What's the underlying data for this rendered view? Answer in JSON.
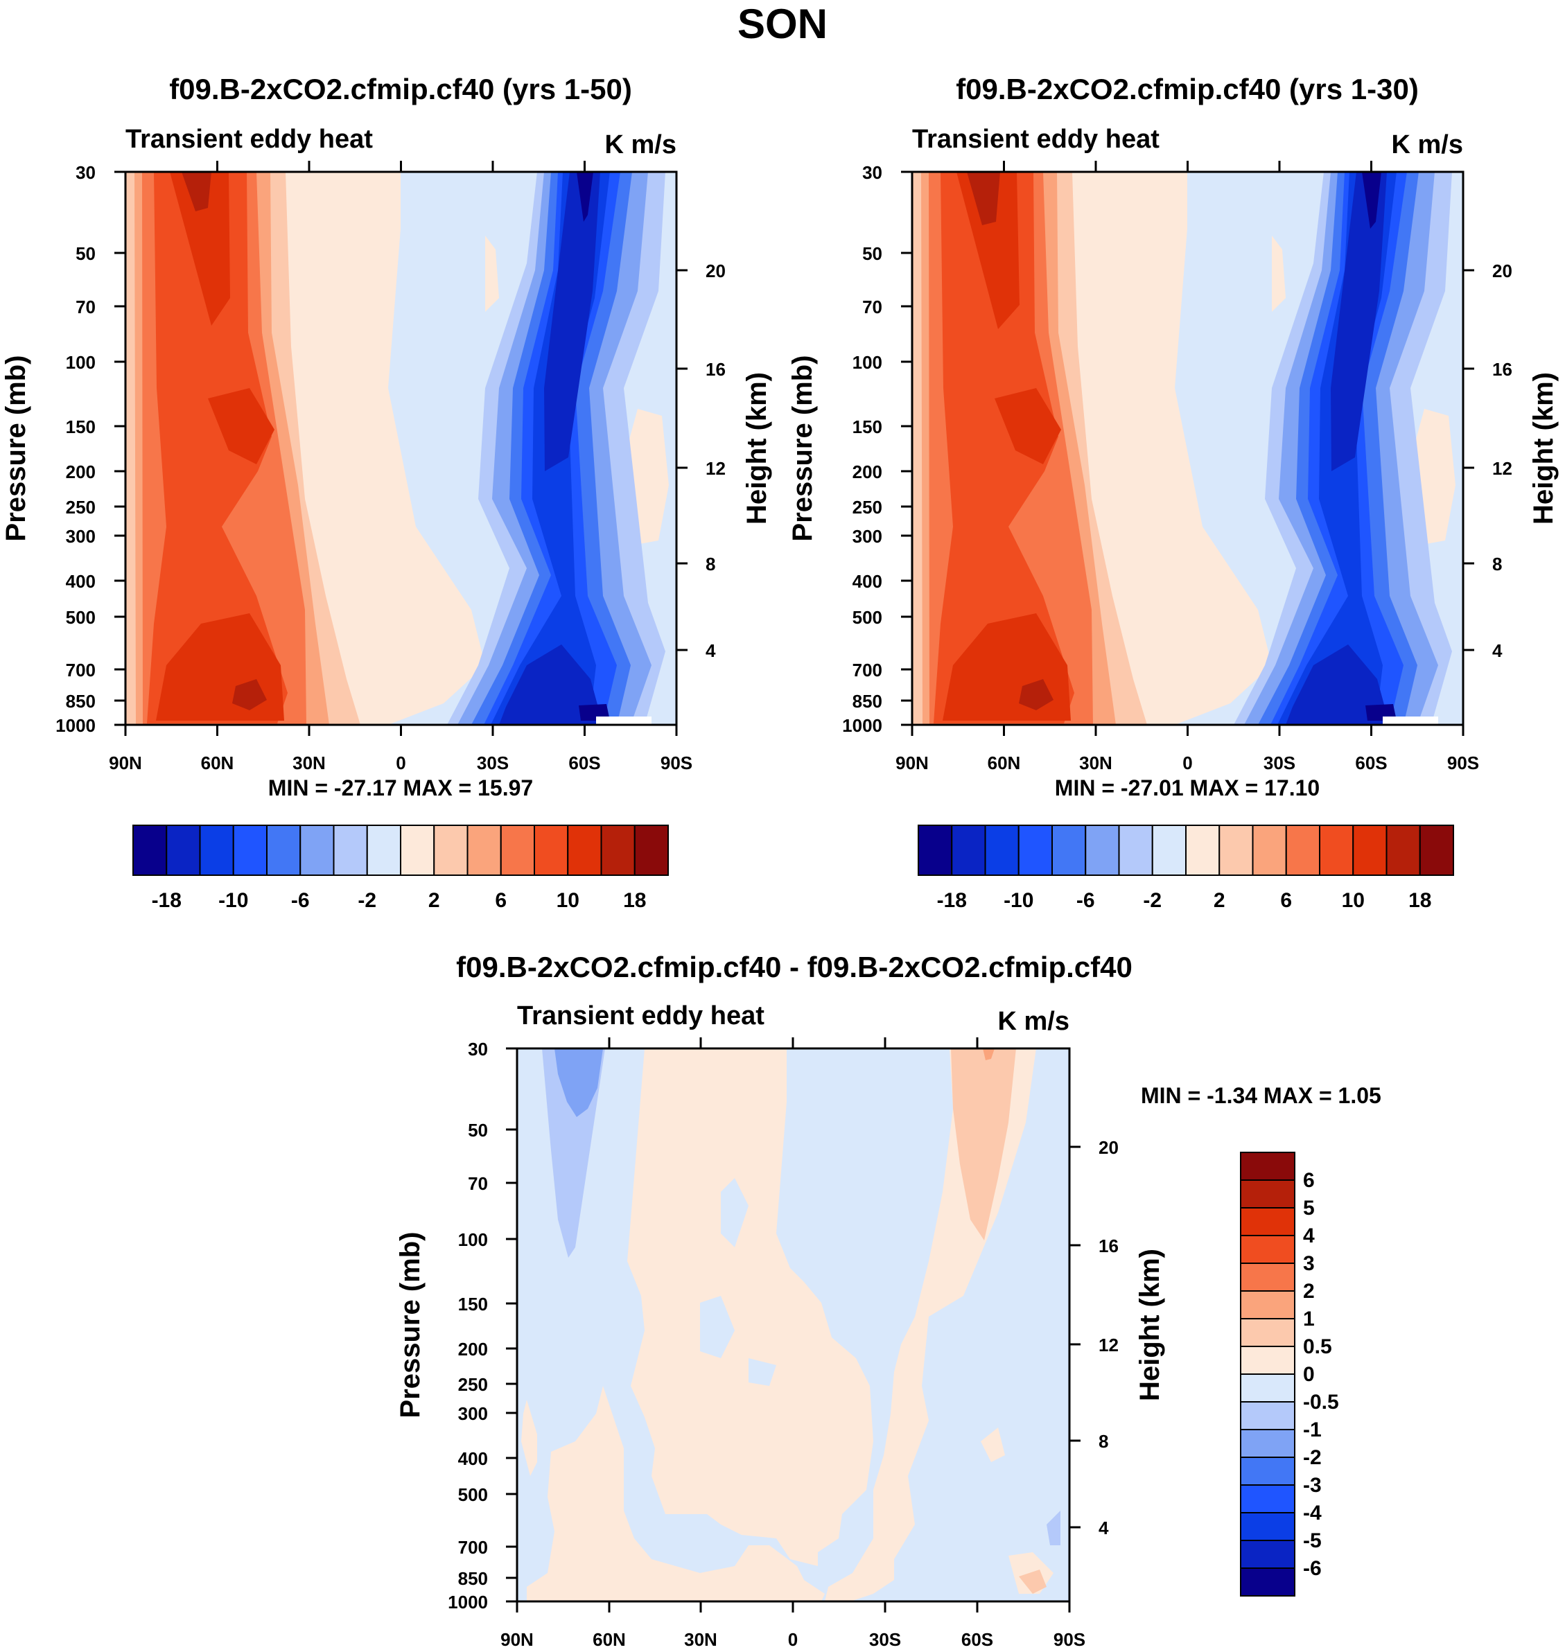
{
  "figure": {
    "title": "SON"
  },
  "chart_data": [
    {
      "type": "heatmap",
      "title": "f09.B-2xCO2.cfmip.cf40 (yrs 1-50)",
      "variable": "Transient eddy heat",
      "units": "K m/s",
      "xlabel": "",
      "ylabel": "Pressure (mb)",
      "ylabel_right": "Height (km)",
      "x_ticks": [
        "90N",
        "60N",
        "30N",
        "0",
        "30S",
        "60S",
        "90S"
      ],
      "y_ticks": [
        "30",
        "50",
        "70",
        "100",
        "150",
        "200",
        "250",
        "300",
        "400",
        "500",
        "700",
        "850",
        "1000"
      ],
      "height_ticks": [
        "20",
        "16",
        "12",
        "8",
        "4"
      ],
      "minmax": "MIN = -27.17  MAX =  15.97",
      "min": -27.17,
      "max": 15.97,
      "colorbar_labels": [
        "-18",
        "-10",
        "-6",
        "-2",
        "2",
        "6",
        "10",
        "18"
      ],
      "colorbar_levels": [
        -18,
        -14,
        -10,
        -8,
        -6,
        -4,
        -2,
        0,
        2,
        4,
        6,
        8,
        10,
        14,
        18
      ],
      "colors": [
        "#08008c",
        "#0a24c4",
        "#0b3ee6",
        "#1f55ff",
        "#4277f5",
        "#7fa3f5",
        "#b4c9fa",
        "#d9e8fb",
        "#fde9da",
        "#fcc9ad",
        "#faa47c",
        "#f7764a",
        "#f04d20",
        "#e03208",
        "#b5200a",
        "#8a0a0a"
      ]
    },
    {
      "type": "heatmap",
      "title": "f09.B-2xCO2.cfmip.cf40 (yrs 1-30)",
      "variable": "Transient eddy heat",
      "units": "K m/s",
      "xlabel": "",
      "ylabel": "Pressure (mb)",
      "ylabel_right": "Height (km)",
      "x_ticks": [
        "90N",
        "60N",
        "30N",
        "0",
        "30S",
        "60S",
        "90S"
      ],
      "y_ticks": [
        "30",
        "50",
        "70",
        "100",
        "150",
        "200",
        "250",
        "300",
        "400",
        "500",
        "700",
        "850",
        "1000"
      ],
      "height_ticks": [
        "20",
        "16",
        "12",
        "8",
        "4"
      ],
      "minmax": "MIN = -27.01  MAX =  17.10",
      "min": -27.01,
      "max": 17.1,
      "colorbar_labels": [
        "-18",
        "-10",
        "-6",
        "-2",
        "2",
        "6",
        "10",
        "18"
      ],
      "colorbar_levels": [
        -18,
        -14,
        -10,
        -8,
        -6,
        -4,
        -2,
        0,
        2,
        4,
        6,
        8,
        10,
        14,
        18
      ],
      "colors": [
        "#08008c",
        "#0a24c4",
        "#0b3ee6",
        "#1f55ff",
        "#4277f5",
        "#7fa3f5",
        "#b4c9fa",
        "#d9e8fb",
        "#fde9da",
        "#fcc9ad",
        "#faa47c",
        "#f7764a",
        "#f04d20",
        "#e03208",
        "#b5200a",
        "#8a0a0a"
      ]
    },
    {
      "type": "heatmap",
      "title": "f09.B-2xCO2.cfmip.cf40 - f09.B-2xCO2.cfmip.cf40",
      "variable": "Transient eddy heat",
      "units": "K m/s",
      "xlabel": "",
      "ylabel": "Pressure (mb)",
      "ylabel_right": "Height (km)",
      "x_ticks": [
        "90N",
        "60N",
        "30N",
        "0",
        "30S",
        "60S",
        "90S"
      ],
      "y_ticks": [
        "30",
        "50",
        "70",
        "100",
        "150",
        "200",
        "250",
        "300",
        "400",
        "500",
        "700",
        "850",
        "1000"
      ],
      "height_ticks": [
        "20",
        "16",
        "12",
        "8",
        "4"
      ],
      "minmax": "MIN =  -1.34  MAX =   1.05",
      "min": -1.34,
      "max": 1.05,
      "colorbar_labels": [
        "6",
        "5",
        "4",
        "3",
        "2",
        "1",
        "0.5",
        "0",
        "-0.5",
        "-1",
        "-2",
        "-3",
        "-4",
        "-5",
        "-6"
      ],
      "colors": [
        "#8a0a0a",
        "#b5200a",
        "#e03208",
        "#f04d20",
        "#f7764a",
        "#faa47c",
        "#fcc9ad",
        "#fde9da",
        "#d9e8fb",
        "#b4c9fa",
        "#7fa3f5",
        "#4277f5",
        "#1f55ff",
        "#0b3ee6",
        "#0a24c4",
        "#08008c"
      ]
    }
  ]
}
